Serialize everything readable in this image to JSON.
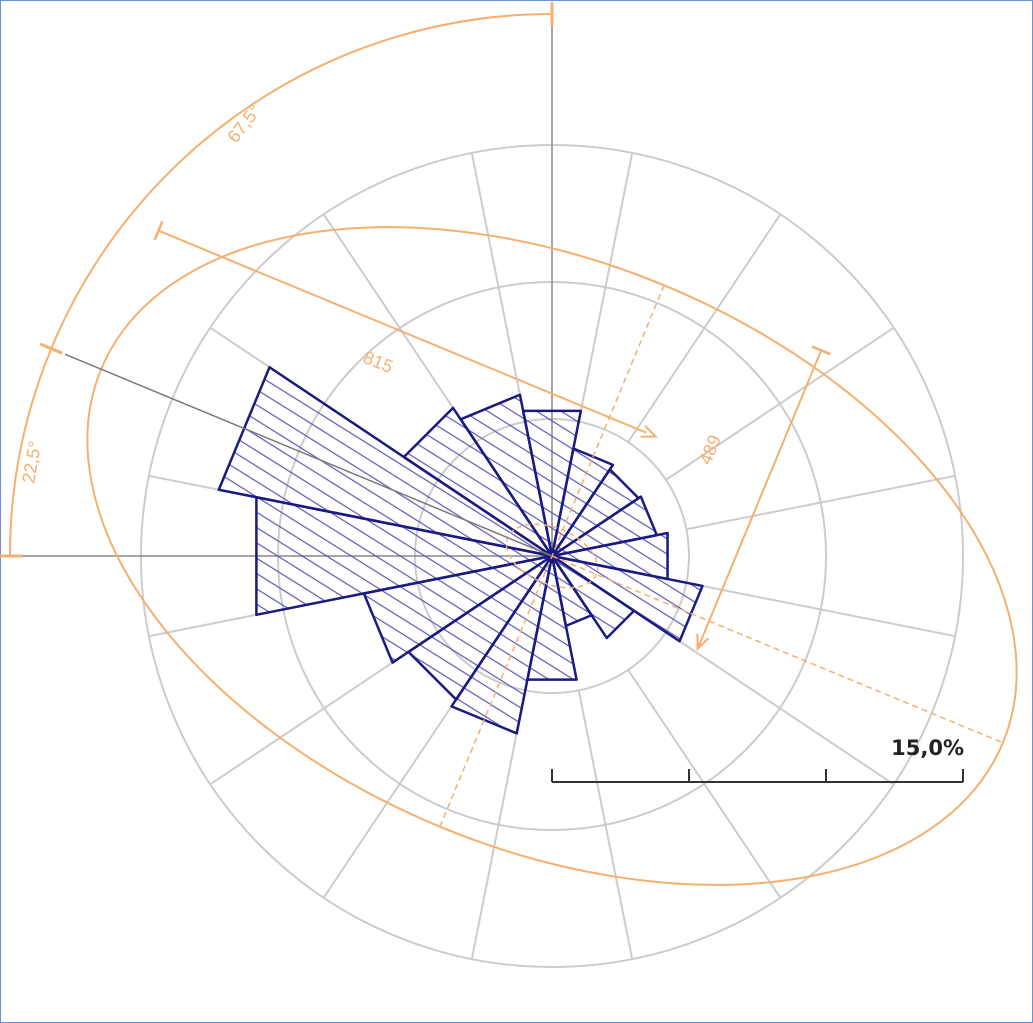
{
  "chart_data": {
    "type": "polar-rose",
    "sector_width_deg": 22.5,
    "sectors": [
      {
        "bearing": 0,
        "value": 5.4
      },
      {
        "bearing": 22.5,
        "value": 4.0
      },
      {
        "bearing": 45,
        "value": 3.8
      },
      {
        "bearing": 67.5,
        "value": 3.9
      },
      {
        "bearing": 90,
        "value": 4.3
      },
      {
        "bearing": 112.5,
        "value": 5.6
      },
      {
        "bearing": 135,
        "value": 3.6
      },
      {
        "bearing": 157.5,
        "value": 2.6
      },
      {
        "bearing": 180,
        "value": 4.6
      },
      {
        "bearing": 202.5,
        "value": 6.6
      },
      {
        "bearing": 225,
        "value": 6.3
      },
      {
        "bearing": 247.5,
        "value": 7.0
      },
      {
        "bearing": 270,
        "value": 11.0
      },
      {
        "bearing": 292.5,
        "value": 12.4
      },
      {
        "bearing": 315,
        "value": 6.5
      },
      {
        "bearing": 337.5,
        "value": 6.0
      }
    ],
    "rings_percent": [
      5,
      10,
      15
    ],
    "bar_color": "#1a1a80",
    "grid_color": "#cccccc",
    "annotation_color": "#f5b070"
  },
  "annotations": {
    "major_axis_label": "815",
    "minor_axis_label": "489",
    "outer_arc_label": "67,5°",
    "inner_arc_label": "22,5°"
  },
  "scale_bar": {
    "label": "15,0%",
    "divisions": 3
  }
}
